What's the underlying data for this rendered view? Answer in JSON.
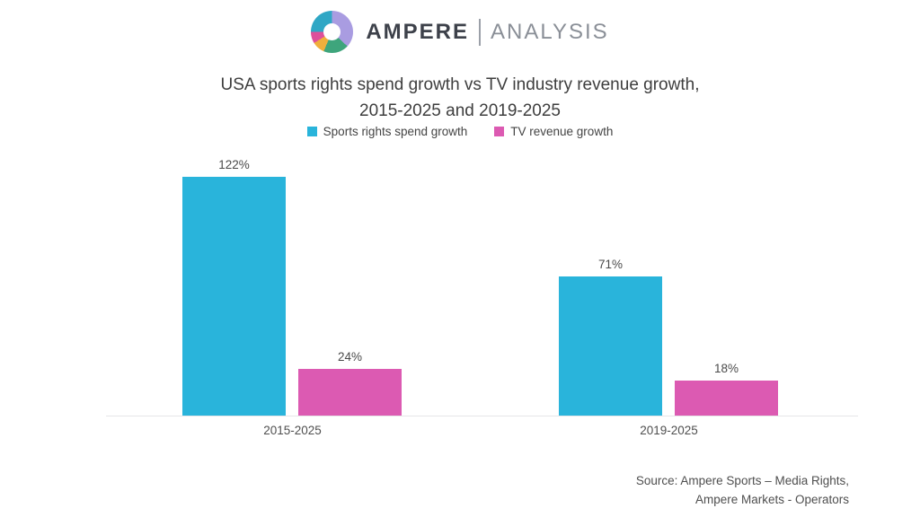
{
  "logo": {
    "brand": "AMPERE",
    "sub": "ANALYSIS",
    "donut_segments": [
      {
        "name": "lavender",
        "color": "#a99ce1",
        "from": 0,
        "to": 133
      },
      {
        "name": "green",
        "color": "#3ea57c",
        "from": 133,
        "to": 203
      },
      {
        "name": "yellow",
        "color": "#f0af3c",
        "from": 203,
        "to": 238
      },
      {
        "name": "pink",
        "color": "#de4f9b",
        "from": 238,
        "to": 270
      },
      {
        "name": "teal",
        "color": "#2fa7c5",
        "from": 270,
        "to": 360
      }
    ]
  },
  "title": {
    "line1": "USA sports rights spend growth vs TV industry revenue growth,",
    "line2": "2015-2025 and 2019-2025"
  },
  "legend": [
    {
      "label": "Sports rights spend growth",
      "color": "#29b4db"
    },
    {
      "label": "TV revenue growth",
      "color": "#dc5ab2"
    }
  ],
  "chart_data": {
    "type": "bar",
    "categories": [
      "2015-2025",
      "2019-2025"
    ],
    "series": [
      {
        "name": "Sports rights spend growth",
        "color": "#29b4db",
        "values": [
          122,
          71
        ],
        "labels": [
          "122%",
          "71%"
        ]
      },
      {
        "name": "TV revenue growth",
        "color": "#dc5ab2",
        "values": [
          24,
          18
        ],
        "labels": [
          "24%",
          "18%"
        ]
      }
    ],
    "ylim": [
      0,
      130
    ],
    "grid": false,
    "legend_position": "top",
    "value_labels": "above bars, percent format",
    "baseline_axis_color": "#e5e5e8"
  },
  "source": {
    "line1": "Source: Ampere Sports – Media Rights,",
    "line2": "Ampere Markets - Operators"
  }
}
